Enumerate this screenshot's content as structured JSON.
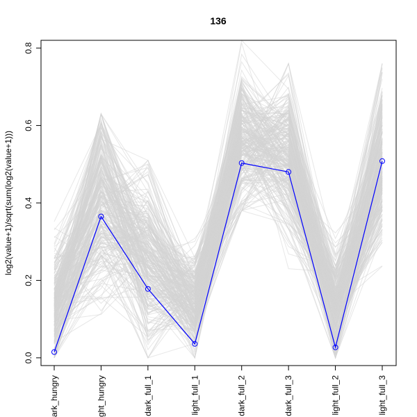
{
  "chart_data": {
    "type": "line",
    "title": "136",
    "xlabel": "",
    "ylabel": "log2(value+1)/sqrt(sum(log2(value+1)))",
    "categories": [
      "dark_hungry",
      "light_hungry",
      "dark_full_1",
      "light_full_1",
      "dark_full_2",
      "dark_full_3",
      "light_full_2",
      "light_full_3"
    ],
    "y_ticks": [
      "0.0",
      "0.2",
      "0.4",
      "0.6",
      "0.8"
    ],
    "ylim": [
      -0.02,
      0.82
    ],
    "grid": false,
    "highlight_series": {
      "name": "136",
      "color": "#0000ff",
      "values": [
        0.015,
        0.365,
        0.178,
        0.036,
        0.503,
        0.48,
        0.027,
        0.508
      ]
    },
    "background_series": {
      "color": "#d3d3d3",
      "count": 260,
      "mean_profile": [
        0.12,
        0.42,
        0.24,
        0.13,
        0.56,
        0.53,
        0.14,
        0.5
      ],
      "min_profile": [
        0.0,
        0.0,
        0.0,
        0.0,
        0.38,
        0.22,
        0.0,
        0.18
      ],
      "max_profile": [
        0.36,
        0.63,
        0.51,
        0.32,
        0.82,
        0.76,
        0.33,
        0.76
      ]
    }
  }
}
